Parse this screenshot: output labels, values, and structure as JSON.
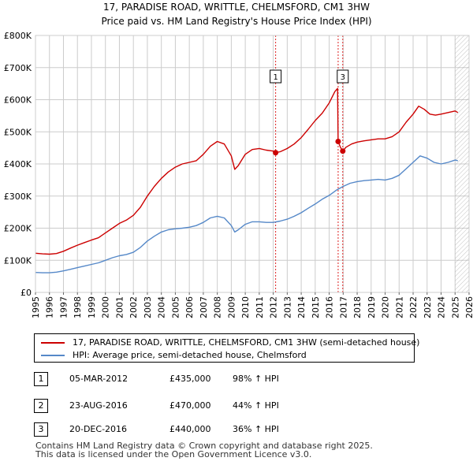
{
  "chart_data": {
    "type": "line",
    "title": "17, PARADISE ROAD, WRITTLE, CHELMSFORD, CM1 3HW",
    "subtitle": "Price paid vs. HM Land Registry's House Price Index (HPI)",
    "xlim": [
      1995,
      2026
    ],
    "ylim": [
      0,
      800000
    ],
    "x_ticks": [
      1995,
      1996,
      1997,
      1998,
      1999,
      2000,
      2001,
      2002,
      2003,
      2004,
      2005,
      2006,
      2007,
      2008,
      2009,
      2010,
      2011,
      2012,
      2013,
      2014,
      2015,
      2016,
      2017,
      2018,
      2019,
      2020,
      2021,
      2022,
      2023,
      2024,
      2025,
      2026
    ],
    "y_ticks": [
      {
        "value": 0,
        "label": "£0"
      },
      {
        "value": 100000,
        "label": "£100K"
      },
      {
        "value": 200000,
        "label": "£200K"
      },
      {
        "value": 300000,
        "label": "£300K"
      },
      {
        "value": 400000,
        "label": "£400K"
      },
      {
        "value": 500000,
        "label": "£500K"
      },
      {
        "value": 600000,
        "label": "£600K"
      },
      {
        "value": 700000,
        "label": "£700K"
      },
      {
        "value": 800000,
        "label": "£800K"
      }
    ],
    "series": [
      {
        "name": "17, PARADISE ROAD, WRITTLE, CHELMSFORD, CM1 3HW (semi-detached house)",
        "color": "#cc0000",
        "points": [
          [
            1995.0,
            122000
          ],
          [
            1995.5,
            120000
          ],
          [
            1996.0,
            119000
          ],
          [
            1996.5,
            121000
          ],
          [
            1997.0,
            128000
          ],
          [
            1997.5,
            138000
          ],
          [
            1998.0,
            147000
          ],
          [
            1998.5,
            155000
          ],
          [
            1999.0,
            163000
          ],
          [
            1999.5,
            170000
          ],
          [
            2000.0,
            185000
          ],
          [
            2000.5,
            200000
          ],
          [
            2001.0,
            215000
          ],
          [
            2001.5,
            225000
          ],
          [
            2002.0,
            240000
          ],
          [
            2002.5,
            265000
          ],
          [
            2003.0,
            300000
          ],
          [
            2003.5,
            330000
          ],
          [
            2004.0,
            355000
          ],
          [
            2004.5,
            375000
          ],
          [
            2005.0,
            390000
          ],
          [
            2005.5,
            400000
          ],
          [
            2006.0,
            405000
          ],
          [
            2006.5,
            410000
          ],
          [
            2007.0,
            430000
          ],
          [
            2007.5,
            455000
          ],
          [
            2008.0,
            470000
          ],
          [
            2008.5,
            462000
          ],
          [
            2009.0,
            425000
          ],
          [
            2009.25,
            383000
          ],
          [
            2009.5,
            395000
          ],
          [
            2010.0,
            430000
          ],
          [
            2010.5,
            445000
          ],
          [
            2011.0,
            448000
          ],
          [
            2011.5,
            443000
          ],
          [
            2012.0,
            440000
          ],
          [
            2012.17,
            435000
          ],
          [
            2012.5,
            438000
          ],
          [
            2013.0,
            448000
          ],
          [
            2013.5,
            462000
          ],
          [
            2014.0,
            482000
          ],
          [
            2014.5,
            508000
          ],
          [
            2015.0,
            535000
          ],
          [
            2015.5,
            558000
          ],
          [
            2016.0,
            590000
          ],
          [
            2016.4,
            625000
          ],
          [
            2016.6,
            635000
          ],
          [
            2016.64,
            470000
          ],
          [
            2016.8,
            452000
          ],
          [
            2016.97,
            440000
          ],
          [
            2017.2,
            452000
          ],
          [
            2017.6,
            462000
          ],
          [
            2018.0,
            468000
          ],
          [
            2018.5,
            472000
          ],
          [
            2019.0,
            475000
          ],
          [
            2019.5,
            478000
          ],
          [
            2020.0,
            478000
          ],
          [
            2020.5,
            485000
          ],
          [
            2021.0,
            500000
          ],
          [
            2021.5,
            530000
          ],
          [
            2022.0,
            555000
          ],
          [
            2022.4,
            580000
          ],
          [
            2022.8,
            570000
          ],
          [
            2023.2,
            555000
          ],
          [
            2023.6,
            552000
          ],
          [
            2024.0,
            555000
          ],
          [
            2024.5,
            560000
          ],
          [
            2025.0,
            565000
          ],
          [
            2025.2,
            560000
          ]
        ]
      },
      {
        "name": "HPI: Average price, semi-detached house, Chelmsford",
        "color": "#5588c8",
        "points": [
          [
            1995.0,
            62000
          ],
          [
            1995.5,
            61000
          ],
          [
            1996.0,
            61000
          ],
          [
            1996.5,
            63000
          ],
          [
            1997.0,
            67000
          ],
          [
            1997.5,
            72000
          ],
          [
            1998.0,
            77000
          ],
          [
            1998.5,
            82000
          ],
          [
            1999.0,
            87000
          ],
          [
            1999.5,
            92000
          ],
          [
            2000.0,
            100000
          ],
          [
            2000.5,
            108000
          ],
          [
            2001.0,
            114000
          ],
          [
            2001.5,
            118000
          ],
          [
            2002.0,
            125000
          ],
          [
            2002.5,
            140000
          ],
          [
            2003.0,
            160000
          ],
          [
            2003.5,
            175000
          ],
          [
            2004.0,
            188000
          ],
          [
            2004.5,
            195000
          ],
          [
            2005.0,
            198000
          ],
          [
            2005.5,
            200000
          ],
          [
            2006.0,
            203000
          ],
          [
            2006.5,
            208000
          ],
          [
            2007.0,
            218000
          ],
          [
            2007.5,
            232000
          ],
          [
            2008.0,
            237000
          ],
          [
            2008.5,
            232000
          ],
          [
            2009.0,
            208000
          ],
          [
            2009.25,
            188000
          ],
          [
            2009.5,
            195000
          ],
          [
            2010.0,
            212000
          ],
          [
            2010.5,
            220000
          ],
          [
            2011.0,
            220000
          ],
          [
            2011.5,
            218000
          ],
          [
            2012.0,
            218000
          ],
          [
            2012.5,
            222000
          ],
          [
            2013.0,
            228000
          ],
          [
            2013.5,
            237000
          ],
          [
            2014.0,
            248000
          ],
          [
            2014.5,
            262000
          ],
          [
            2015.0,
            275000
          ],
          [
            2015.5,
            290000
          ],
          [
            2016.0,
            302000
          ],
          [
            2016.5,
            318000
          ],
          [
            2017.0,
            330000
          ],
          [
            2017.5,
            340000
          ],
          [
            2018.0,
            345000
          ],
          [
            2018.5,
            348000
          ],
          [
            2019.0,
            350000
          ],
          [
            2019.5,
            352000
          ],
          [
            2020.0,
            350000
          ],
          [
            2020.5,
            355000
          ],
          [
            2021.0,
            365000
          ],
          [
            2021.5,
            385000
          ],
          [
            2022.0,
            405000
          ],
          [
            2022.5,
            425000
          ],
          [
            2023.0,
            418000
          ],
          [
            2023.5,
            405000
          ],
          [
            2024.0,
            400000
          ],
          [
            2024.5,
            405000
          ],
          [
            2025.0,
            412000
          ],
          [
            2025.2,
            410000
          ]
        ]
      }
    ],
    "sales": [
      {
        "id": "1",
        "x": 2012.17,
        "price": 435000,
        "date": "05-MAR-2012",
        "price_label": "£435,000",
        "hpi": "98% ↑ HPI"
      },
      {
        "id": "2",
        "x": 2016.64,
        "price": 470000,
        "date": "23-AUG-2016",
        "price_label": "£470,000",
        "hpi": "44% ↑ HPI"
      },
      {
        "id": "3",
        "x": 2016.97,
        "price": 440000,
        "date": "20-DEC-2016",
        "price_label": "£440,000",
        "hpi": "36% ↑ HPI"
      }
    ],
    "marker_labels": [
      {
        "text": "1",
        "x": 2012.17
      },
      {
        "text": "3",
        "x": 2016.97
      }
    ],
    "hatch_from": 2025.0,
    "grid": true
  },
  "legend": {
    "items": [
      {
        "label": "17, PARADISE ROAD, WRITTLE, CHELMSFORD, CM1 3HW (semi-detached house)",
        "color": "#cc0000"
      },
      {
        "label": "HPI: Average price, semi-detached house, Chelmsford",
        "color": "#5588c8"
      }
    ]
  },
  "footer": {
    "line1": "Contains HM Land Registry data © Crown copyright and database right 2025.",
    "line2": "This data is licensed under the Open Government Licence v3.0."
  }
}
